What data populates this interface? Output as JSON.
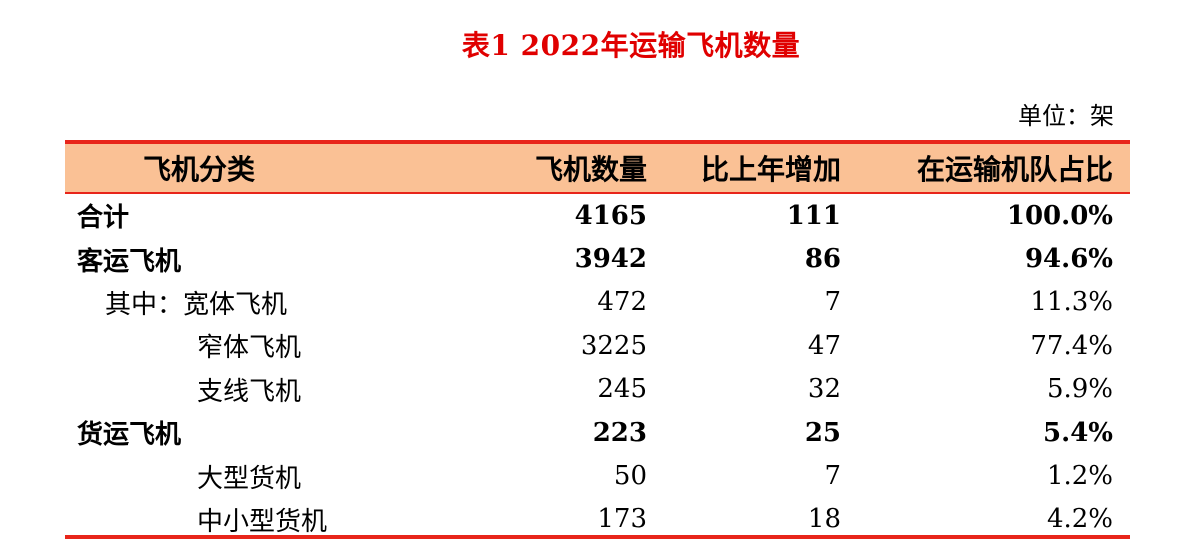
{
  "title": "表1 2022年运输飞机数量",
  "unit": "单位：架",
  "colors": {
    "title": "#e00000",
    "header_bg": "#fac195",
    "rule": "#e8251a"
  },
  "header": [
    "飞机分类",
    "飞机数量",
    "比上年增加",
    "在运输机队占比"
  ],
  "rows": [
    {
      "label": "合计",
      "count": "4165",
      "increase": "111",
      "share": "100.0%",
      "bold": true,
      "indent": 0
    },
    {
      "label": "客运飞机",
      "count": "3942",
      "increase": "86",
      "share": "94.6%",
      "bold": true,
      "indent": 0
    },
    {
      "label": "其中：宽体飞机",
      "count": "472",
      "increase": "7",
      "share": "11.3%",
      "bold": false,
      "indent": 1
    },
    {
      "label": "窄体飞机",
      "count": "3225",
      "increase": "47",
      "share": "77.4%",
      "bold": false,
      "indent": 2
    },
    {
      "label": "支线飞机",
      "count": "245",
      "increase": "32",
      "share": "5.9%",
      "bold": false,
      "indent": 2
    },
    {
      "label": "货运飞机",
      "count": "223",
      "increase": "25",
      "share": "5.4%",
      "bold": true,
      "indent": 0
    },
    {
      "label": "大型货机",
      "count": "50",
      "increase": "7",
      "share": "1.2%",
      "bold": false,
      "indent": 2
    },
    {
      "label": "中小型货机",
      "count": "173",
      "increase": "18",
      "share": "4.2%",
      "bold": false,
      "indent": 2
    }
  ]
}
